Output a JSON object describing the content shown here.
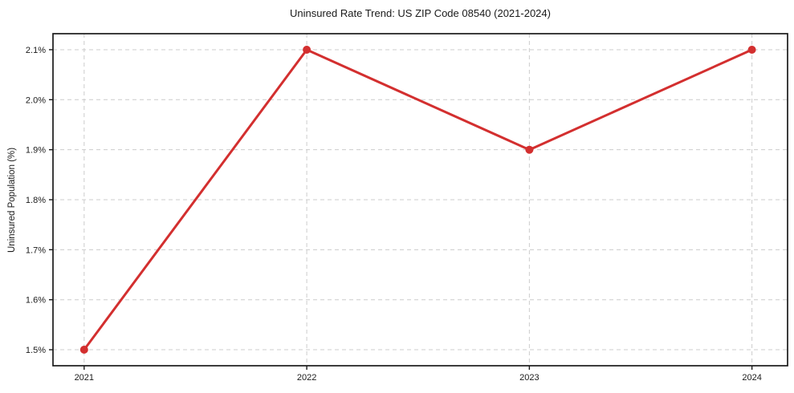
{
  "chart_data": {
    "type": "line",
    "title": "Uninsured Rate Trend: US ZIP Code 08540 (2021-2024)",
    "xlabel": "",
    "ylabel": "Uninsured Population (%)",
    "x": [
      2021,
      2022,
      2023,
      2024
    ],
    "x_tick_labels": [
      "2021",
      "2022",
      "2023",
      "2024"
    ],
    "series": [
      {
        "name": "Uninsured Population (%)",
        "values": [
          1.5,
          2.1,
          1.9,
          2.1
        ],
        "color": "#d32f2f"
      }
    ],
    "y_ticks": [
      1.5,
      1.6,
      1.7,
      1.8,
      1.9,
      2.0,
      2.1
    ],
    "y_tick_labels": [
      "1.5%",
      "1.6%",
      "1.7%",
      "1.8%",
      "1.9%",
      "2.0%",
      "2.1%"
    ],
    "xlim": [
      2020.86,
      2024.16
    ],
    "ylim": [
      1.468,
      2.132
    ],
    "grid": "dashed",
    "grid_color": "#cccccc",
    "frame_color": "#1a1a1a",
    "legend": "none",
    "marker": "circle",
    "line_width": 3,
    "marker_radius": 5
  }
}
